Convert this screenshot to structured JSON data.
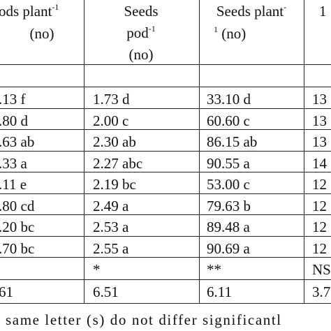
{
  "header": {
    "col1": {
      "line1": "ods plant",
      "sup": "-1",
      "line2": "(no)"
    },
    "col2": {
      "line1": "Seeds",
      "line2": "pod",
      "sup": "-1",
      "line3": "(no)"
    },
    "col3": {
      "line1": "Seeds plant",
      "sup1": "-",
      "sup2": "1",
      "line2": " (no)"
    },
    "col4": {
      "line1": "1"
    }
  },
  "rows": [
    [
      ".13 f",
      "1.73 d",
      "33.10 d",
      "13"
    ],
    [
      ".80 d",
      "2.00 c",
      "60.60 c",
      "13"
    ],
    [
      ".63 ab",
      "2.30 ab",
      "86.15 ab",
      "13"
    ],
    [
      ".33 a",
      "2.27 abc",
      "90.55 a",
      "14"
    ],
    [
      ".11 e",
      "2.19 bc",
      "53.00 c",
      "12"
    ],
    [
      ".80 cd",
      "2.49 a",
      "79.63 b",
      "12"
    ],
    [
      ".20 bc",
      "2.53 a",
      "89.48 a",
      "12"
    ],
    [
      ".70 bc",
      "2.55 a",
      "90.69 a",
      "12"
    ]
  ],
  "significance": {
    "col2": "*",
    "col3": "**",
    "col4": "NS"
  },
  "cv": [
    "61",
    "6.51",
    "6.11",
    "3.7"
  ],
  "footnote": "same letter (s) do not differ significantl"
}
